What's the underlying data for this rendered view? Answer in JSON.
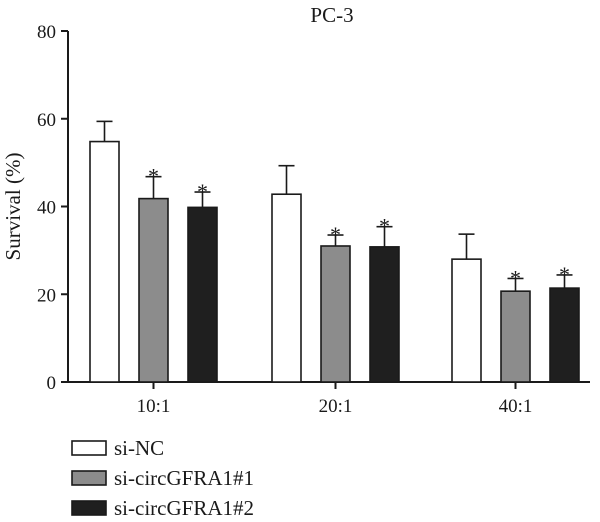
{
  "chart_data": {
    "type": "bar",
    "title": "PC-3",
    "xlabel": "",
    "ylabel": "Survival (%)",
    "ylim": [
      0,
      80
    ],
    "yticks": [
      0,
      20,
      40,
      60,
      80
    ],
    "categories": [
      "10:1",
      "20:1",
      "40:1"
    ],
    "series": [
      {
        "name": "si-NC",
        "values": [
          54.8,
          42.8,
          28.0
        ],
        "errors": [
          4.6,
          6.5,
          5.7
        ],
        "significant": [
          false,
          false,
          false
        ],
        "color": "#ffffff"
      },
      {
        "name": "si-circGFRA1#1",
        "values": [
          41.8,
          31.0,
          20.7
        ],
        "errors": [
          5.0,
          2.5,
          2.9
        ],
        "significant": [
          true,
          true,
          true
        ],
        "color": "#8c8c8c"
      },
      {
        "name": "si-circGFRA1#2",
        "values": [
          39.8,
          30.8,
          21.4
        ],
        "errors": [
          3.5,
          4.6,
          3.0
        ],
        "significant": [
          true,
          true,
          true
        ],
        "color": "#1f1f1f"
      }
    ],
    "significance_marker": "*",
    "legend_position": "bottom-left",
    "grid": false
  }
}
